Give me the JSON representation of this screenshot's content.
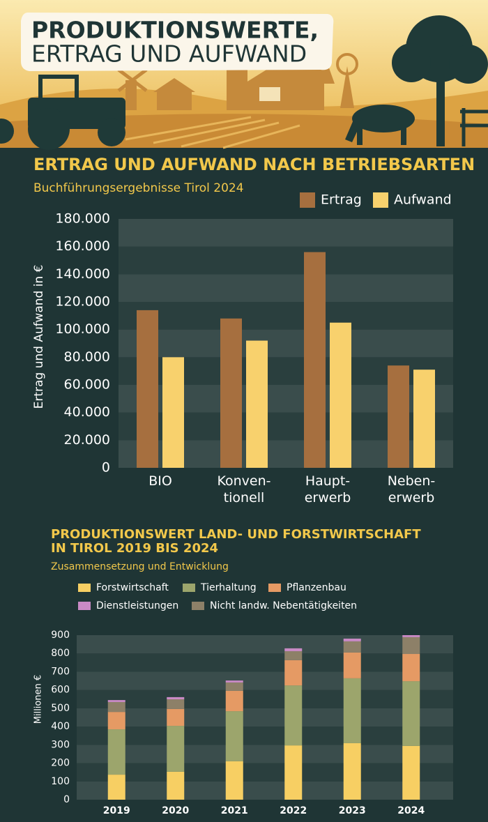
{
  "header": {
    "title": [
      "PRODUKTIONSWERTE,",
      "ERTRAG UND AUFWAND"
    ]
  },
  "chart_data": [
    {
      "type": "bar",
      "title": "ERTRAG UND AUFWAND NACH BETRIEBSARTEN",
      "subtitle": "Buchführungsergebnisse Tirol 2024",
      "y_label": "Ertrag und Aufwand in €",
      "categories": [
        "BIO",
        "Konven-\ntionell",
        "Haupt-\nerwerb",
        "Neben-\nerwerb"
      ],
      "series": [
        {
          "name": "Ertrag",
          "color": "#a66f3f",
          "values": [
            114000,
            108000,
            156000,
            74000
          ]
        },
        {
          "name": "Aufwand",
          "color": "#f8d16d",
          "values": [
            80000,
            92000,
            105000,
            71000
          ]
        }
      ],
      "ylim": [
        0,
        180000
      ],
      "yticks": [
        0,
        {
          "value": 20000,
          "label": "20.000"
        },
        {
          "value": 40000,
          "label": "40.000"
        },
        {
          "value": 60000,
          "label": "60.000"
        },
        {
          "value": 80000,
          "label": "80.000"
        },
        {
          "value": 100000,
          "label": "100.000"
        },
        {
          "value": 120000,
          "label": "120.000"
        },
        {
          "value": 140000,
          "label": "140.000"
        },
        {
          "value": 160000,
          "label": "160.000"
        },
        {
          "value": 180000,
          "label": "180.000"
        }
      ],
      "grid": true,
      "legend": "top-right"
    },
    {
      "type": "stacked_bar",
      "title": [
        "PRODUKTIONSWERT LAND- UND FORSTWIRTSCHAFT",
        "IN TIROL 2019 BIS 2024"
      ],
      "subtitle": "Zusammensetzung und Entwicklung",
      "y_label": "Millionen €",
      "categories": [
        "2019",
        "2020",
        "2021",
        "2022",
        "2023",
        "2024"
      ],
      "series": [
        {
          "name": "Forstwirtschaft",
          "color": "#f7cf63",
          "values": [
            137,
            153,
            210,
            297,
            309,
            294
          ]
        },
        {
          "name": "Tierhaltung",
          "color": "#9ca56c",
          "values": [
            248,
            251,
            274,
            328,
            355,
            354
          ]
        },
        {
          "name": "Pflanzenbau",
          "color": "#e59a64",
          "values": [
            95,
            92,
            111,
            138,
            141,
            149
          ]
        },
        {
          "name": "Nicht landw. Nebentätigkeiten",
          "color": "#8d8068",
          "values": [
            54,
            53,
            46,
            49,
            61,
            92
          ]
        },
        {
          "name": "Dienstleistungen",
          "color": "#c98ac5",
          "values": [
            11,
            12,
            11,
            16,
            15,
            11
          ]
        }
      ],
      "ylim": [
        0,
        900
      ],
      "yticks": [
        0,
        100,
        200,
        300,
        400,
        500,
        600,
        700,
        800,
        900
      ],
      "grid": true,
      "legend": "top-left"
    }
  ]
}
